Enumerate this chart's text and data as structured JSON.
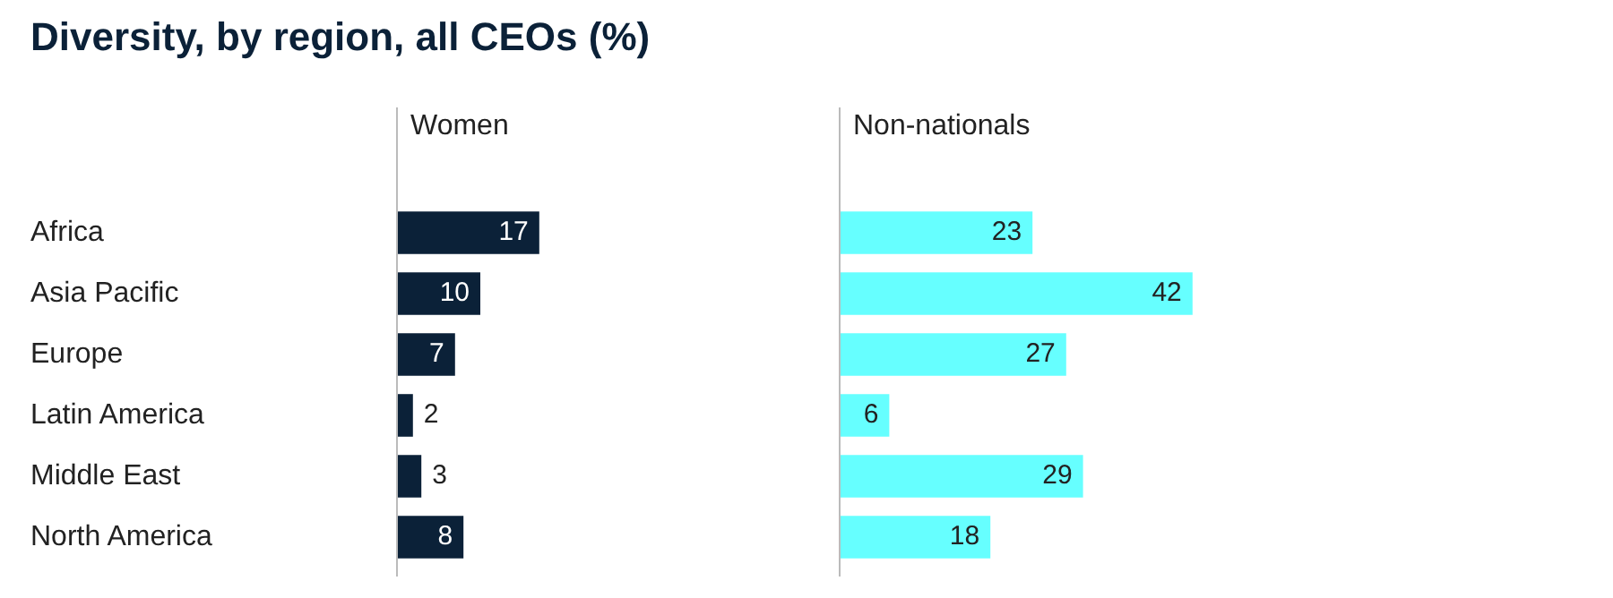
{
  "chart_data": [
    {
      "type": "other",
      "title": "Diversity, by region, all CEOs (%)"
    },
    {
      "type": "bar",
      "orientation": "horizontal",
      "title": "Women",
      "categories": [
        "Africa",
        "Asia Pacific",
        "Europe",
        "Latin America",
        "Middle East",
        "North America"
      ],
      "values": [
        17,
        10,
        7,
        2,
        3,
        8
      ],
      "color": "#0b2138",
      "data_labels": true,
      "tick_labels": "y"
    },
    {
      "type": "bar",
      "orientation": "horizontal",
      "title": "Non-nationals",
      "categories": [
        null,
        null,
        null,
        null,
        null,
        null
      ],
      "values": [
        23,
        42,
        27,
        6,
        29,
        18
      ],
      "color": "#66ffff",
      "data_labels": true,
      "tick_labels": false
    }
  ]
}
